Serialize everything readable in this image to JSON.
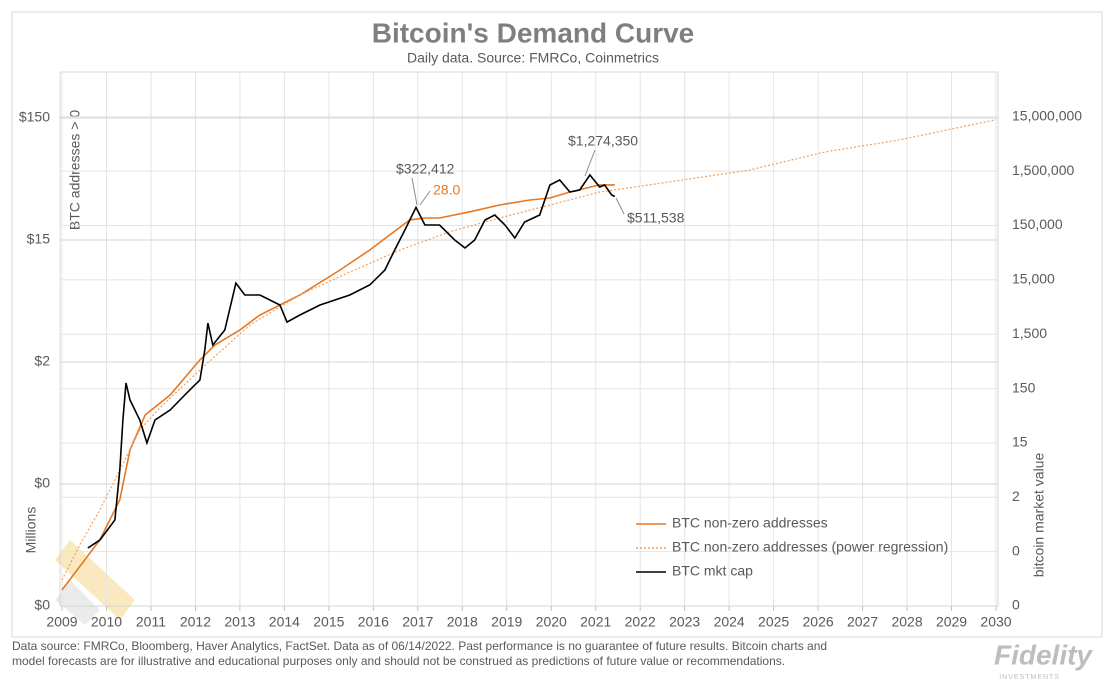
{
  "chart_data": {
    "type": "line",
    "title": "Bitcoin's Demand Curve",
    "subtitle": "Daily data.  Source: FMRCo, Coinmetrics",
    "y_label": "BTC addresses > 0",
    "y_unit_label": "Millions",
    "y2_label": "bitcoin market value",
    "xlim": [
      2009,
      2030
    ],
    "xticks": [
      2009,
      2010,
      2011,
      2012,
      2013,
      2014,
      2015,
      2016,
      2017,
      2018,
      2019,
      2020,
      2021,
      2022,
      2023,
      2024,
      2025,
      2026,
      2027,
      2028,
      2029,
      2030
    ],
    "log_scale": true,
    "ylim": [
      0.015,
      357
    ],
    "yticks": [
      {
        "value": 0.015,
        "label": "$0"
      },
      {
        "value": 0.15,
        "label": "$0"
      },
      {
        "value": 1.5,
        "label": "$2"
      },
      {
        "value": 15,
        "label": "$15"
      },
      {
        "value": 150,
        "label": "$150"
      }
    ],
    "y2lim": [
      0.015,
      100000000
    ],
    "y2ticks": [
      {
        "value": 0.015,
        "label": "0"
      },
      {
        "value": 0.15,
        "label": "0"
      },
      {
        "value": 1.5,
        "label": "2"
      },
      15,
      150,
      {
        "value": 1500,
        "label": "1,500"
      },
      {
        "value": 15000,
        "label": "15,000"
      },
      {
        "value": 150000,
        "label": "150,000"
      },
      {
        "value": 1500000,
        "label": "1,500,000"
      },
      {
        "value": 15000000,
        "label": "15,000,000"
      }
    ],
    "grid": true,
    "legend": "lower right",
    "series": [
      {
        "name": "BTC non-zero addresses",
        "color": "#e87722",
        "style": "solid",
        "axis": "y",
        "x": [
          2009,
          2009.85,
          2010.3,
          2010.53,
          2010.87,
          2011.43,
          2012.1,
          2012.44,
          2013.0,
          2013.45,
          2014.35,
          2015.25,
          2015.92,
          2016.37,
          2016.82,
          2017.16,
          2017.49,
          2018.17,
          2018.84,
          2019.52,
          2019.97,
          2020.42,
          2021.09,
          2021.43
        ],
        "values": [
          0.0203,
          0.0521,
          0.111,
          0.285,
          0.552,
          0.805,
          1.56,
          2.07,
          2.74,
          3.64,
          5.31,
          8.51,
          12.4,
          16.5,
          21.9,
          22.7,
          22.7,
          25.5,
          29.0,
          31.9,
          33.1,
          37.1,
          42.4,
          42.4
        ]
      },
      {
        "name": "BTC non-zero addresses (power regression)",
        "color": "#f0a060",
        "style": "dotted",
        "axis": "y",
        "x": [
          2009,
          2009.4,
          2009.85,
          2010.3,
          2010.75,
          2011.2,
          2012.1,
          2013.22,
          2014.35,
          2015.47,
          2016.6,
          2017.72,
          2018.84,
          2019.97,
          2021.09,
          2022.21,
          2024.46,
          2026.15,
          2027.83,
          2030
        ],
        "values": [
          0.0245,
          0.0474,
          0.0918,
          0.195,
          0.416,
          0.63,
          1.29,
          3.01,
          5.31,
          8.2,
          12.4,
          17.5,
          22.7,
          29.0,
          37.1,
          42.4,
          56.2,
          78.9,
          99.1,
          145
        ]
      },
      {
        "name": "BTC mkt cap",
        "color": "#000000",
        "style": "solid",
        "axis": "y2",
        "x": [
          2009.58,
          2009.85,
          2010.19,
          2010.3,
          2010.37,
          2010.44,
          2010.53,
          2010.75,
          2010.91,
          2011.09,
          2011.43,
          2011.76,
          2012.1,
          2012.21,
          2012.28,
          2012.39,
          2012.66,
          2012.82,
          2012.91,
          2013.11,
          2013.45,
          2013.9,
          2014.06,
          2014.35,
          2014.8,
          2015.47,
          2015.92,
          2016.26,
          2016.48,
          2016.71,
          2016.96,
          2017.16,
          2017.49,
          2017.83,
          2018.06,
          2018.28,
          2018.51,
          2018.73,
          2018.96,
          2019.18,
          2019.4,
          2019.74,
          2019.97,
          2020.19,
          2020.42,
          2020.64,
          2020.87,
          2021.09,
          2021.2,
          2021.36,
          2021.43
        ],
        "values": [
          0.175,
          0.245,
          0.573,
          4.76,
          39.6,
          190,
          92.5,
          39.6,
          15.0,
          39.6,
          60.5,
          114,
          216,
          768,
          2410,
          949,
          1790,
          6380,
          13100,
          7890,
          7890,
          5160,
          2510,
          3380,
          5160,
          7890,
          12100,
          22800,
          53100,
          124000,
          322412,
          153000,
          153000,
          81100,
          57800,
          81100,
          189000,
          234000,
          153000,
          88300,
          174000,
          234000,
          834000,
          1030000,
          619000,
          675000,
          1274350,
          766000,
          834000,
          546000,
          511538
        ]
      }
    ],
    "annotations": [
      {
        "text": "$322,412"
      },
      {
        "text": "28.0",
        "color": "#e87722"
      },
      {
        "text": "$1,274,350"
      },
      {
        "text": "$511,538"
      }
    ],
    "footnote": [
      "Data source: FMRCo, Bloomberg, Haver Analytics, FactSet. Data as of 06/14/2022. Past performance is no guarantee of future results. Bitcoin charts and",
      "model forecasts are for illustrative and educational purposes only and should not be construed as predictions of future value or recommendations."
    ]
  },
  "logo": {
    "name": "Fidelity",
    "tagline": "INVESTMENTS"
  }
}
